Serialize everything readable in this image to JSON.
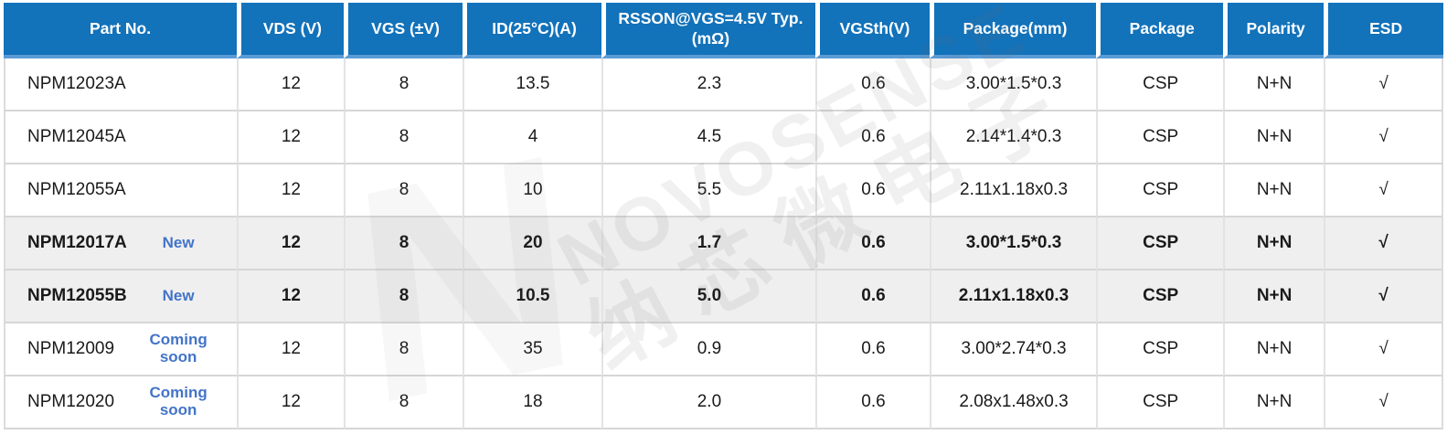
{
  "colors": {
    "header-bg": "#1272ba",
    "header-underline": "#5b9bd5",
    "row-highlight": "#efefef",
    "badge-blue": "#4374c9"
  },
  "watermark": {
    "logo_letter": "N",
    "brand": "NOVOSENSE",
    "brand_cn": "纳芯微电子"
  },
  "table": {
    "columns": [
      {
        "label": "Part No."
      },
      {
        "label": "VDS (V)"
      },
      {
        "label": "VGS (±V)"
      },
      {
        "label": "ID(25°C)(A)"
      },
      {
        "label": "RSSON@VGS=4.5V Typ.(mΩ)"
      },
      {
        "label": "VGSth(V)"
      },
      {
        "label": "Package(mm)"
      },
      {
        "label": "Package"
      },
      {
        "label": "Polarity"
      },
      {
        "label": "ESD"
      }
    ],
    "rows": [
      {
        "part": "NPM12023A",
        "badge": "",
        "highlight": false,
        "values": [
          "12",
          "8",
          "13.5",
          "2.3",
          "0.6",
          "3.00*1.5*0.3",
          "CSP",
          "N+N",
          "√"
        ]
      },
      {
        "part": "NPM12045A",
        "badge": "",
        "highlight": false,
        "values": [
          "12",
          "8",
          "4",
          "4.5",
          "0.6",
          "2.14*1.4*0.3",
          "CSP",
          "N+N",
          "√"
        ]
      },
      {
        "part": "NPM12055A",
        "badge": "",
        "highlight": false,
        "values": [
          "12",
          "8",
          "10",
          "5.5",
          "0.6",
          "2.11x1.18x0.3",
          "CSP",
          "N+N",
          "√"
        ]
      },
      {
        "part": "NPM12017A",
        "badge": "New",
        "highlight": true,
        "values": [
          "12",
          "8",
          "20",
          "1.7",
          "0.6",
          "3.00*1.5*0.3",
          "CSP",
          "N+N",
          "√"
        ]
      },
      {
        "part": "NPM12055B",
        "badge": "New",
        "highlight": true,
        "values": [
          "12",
          "8",
          "10.5",
          "5.0",
          "0.6",
          "2.11x1.18x0.3",
          "CSP",
          "N+N",
          "√"
        ]
      },
      {
        "part": "NPM12009",
        "badge": "Coming soon",
        "highlight": false,
        "values": [
          "12",
          "8",
          "35",
          "0.9",
          "0.6",
          "3.00*2.74*0.3",
          "CSP",
          "N+N",
          "√"
        ]
      },
      {
        "part": "NPM12020",
        "badge": "Coming soon",
        "highlight": false,
        "values": [
          "12",
          "8",
          "18",
          "2.0",
          "0.6",
          "2.08x1.48x0.3",
          "CSP",
          "N+N",
          "√"
        ]
      }
    ]
  }
}
